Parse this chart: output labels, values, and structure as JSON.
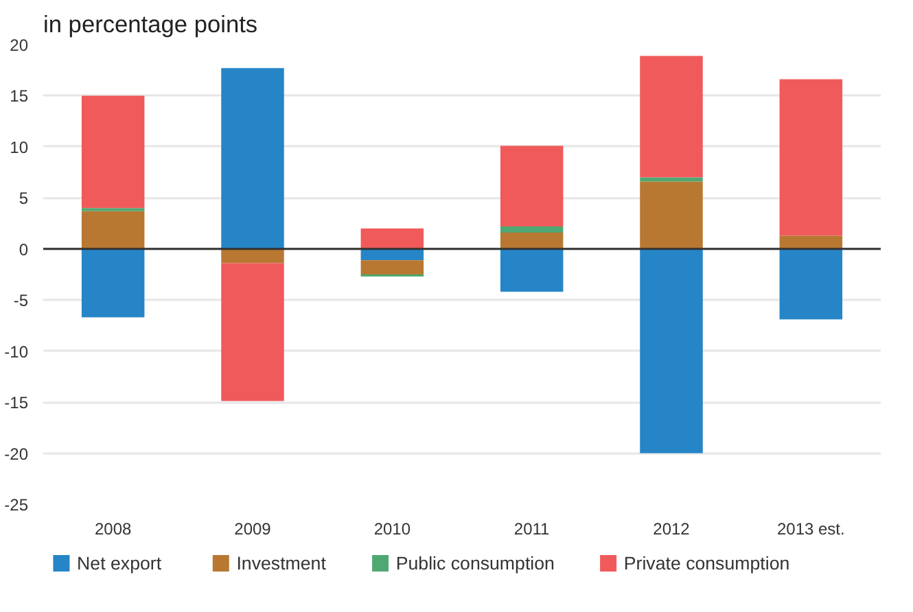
{
  "chart_data": {
    "type": "bar",
    "stacked": true,
    "title": "in percentage points",
    "categories": [
      "2008",
      "2009",
      "2010",
      "2011",
      "2012",
      "2013 est."
    ],
    "series": [
      {
        "name": "Net export",
        "color": "#2585c7",
        "values": [
          -6.7,
          17.7,
          -1.1,
          -4.2,
          -20.0,
          -6.9
        ]
      },
      {
        "name": "Investment",
        "color": "#b87832",
        "values": [
          3.7,
          -1.4,
          -1.4,
          1.6,
          6.6,
          1.3
        ]
      },
      {
        "name": "Public consumption",
        "color": "#4fa872",
        "values": [
          0.3,
          0,
          -0.2,
          0.6,
          0.4,
          0
        ]
      },
      {
        "name": "Private consumption",
        "color": "#f05a5b",
        "values": [
          11.0,
          -13.5,
          2.0,
          7.9,
          11.9,
          15.3
        ]
      }
    ],
    "ylim": [
      -25,
      20
    ],
    "yticks": [
      -25,
      -20,
      -15,
      -10,
      -5,
      0,
      5,
      10,
      15,
      20
    ],
    "ref_lines": [
      {
        "axis": "y",
        "value": 0,
        "color": "#333333"
      }
    ],
    "grid": "y",
    "legend": "bottom"
  }
}
